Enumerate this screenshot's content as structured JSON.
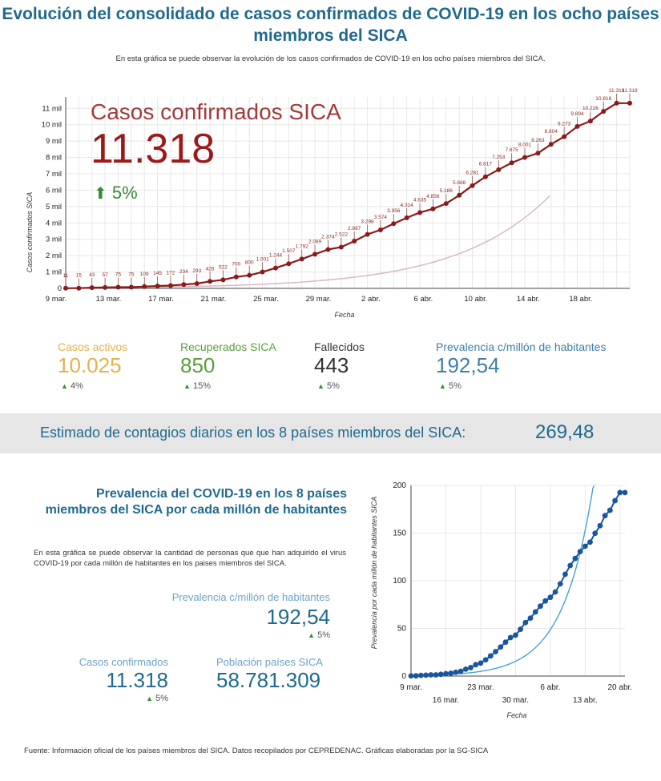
{
  "header": {
    "title": "Evolución del consolidado de casos confirmados de COVID-19 en los ocho países miembros del SICA",
    "subtitle": "En esta gráfica se puede observar la evolución de los casos confirmados de COVID-19 en los ocho países miembros del SICA."
  },
  "kpi": {
    "label": "Casos confirmados SICA",
    "value": "11.318",
    "change": "5%"
  },
  "stats": [
    {
      "label": "Casos activos",
      "value": "10.025",
      "change": "4%",
      "color": "#e8b04a"
    },
    {
      "label": "Recuperados SICA",
      "value": "850",
      "change": "15%",
      "color": "#5a9e3a"
    },
    {
      "label": "Fallecidos",
      "value": "443",
      "change": "5%",
      "color": "#333333"
    },
    {
      "label": "Prevalencia c/millón de habitantes",
      "value": "192,54",
      "change": "5%",
      "color": "#3d7fa6"
    }
  ],
  "daily_estimate": {
    "label": "Estimado de contagios diarios en los 8 países miembros del SICA:",
    "value": "269,48"
  },
  "prevalence_section": {
    "title": "Prevalencia del COVID-19 en los 8 países miembros del SICA por cada millón de habitantes",
    "description": "En esta gráfica se puede observar la cantidad de personas que que han adquirido el virus COVID-19 por cada millón de habitantes en los paises miembros del SICA.",
    "prevalence_label": "Prevalencia c/millón de habitantes",
    "prevalence_value": "192,54",
    "prevalence_change": "5%",
    "cases_label": "Casos confirmados",
    "cases_value": "11.318",
    "cases_change": "5%",
    "population_label": "Población países SICA",
    "population_value": "58.781.309"
  },
  "footer": "Fuente: Información oficial de los países miembros del SICA. Datos recopilados por CEPREDENAC. Gráficas elaboradas por la SG-SICA",
  "colors": {
    "accent": "#1f6a8e",
    "series_main": "#8b1a1a",
    "trend": "#d9b8c0",
    "prev_series": "#1a55a0",
    "prev_trend": "#4a9fd4",
    "up_green": "#3a8a3a"
  },
  "chart_data": [
    {
      "type": "line",
      "xlabel": "Fecha",
      "ylabel": "Casos confirmados SICA",
      "xticks": [
        "9 mar.",
        "13 mar.",
        "17 mar.",
        "21 mar.",
        "25 mar.",
        "29 mar.",
        "2 abr.",
        "6 abr.",
        "10 abr.",
        "14 abr.",
        "18 abr."
      ],
      "yticks": [
        "0",
        "1 mil",
        "2 mil",
        "3 mil",
        "4 mil",
        "5 mil",
        "6 mil",
        "7 mil",
        "8 mil",
        "9 mil",
        "10 mil",
        "11 mil"
      ],
      "ylim": [
        0,
        11700
      ],
      "grid": true,
      "x_start": "2020-03-09",
      "series": [
        {
          "values": [
            11,
            15,
            43,
            57,
            75,
            75,
            109,
            145,
            172,
            234,
            293,
            426,
            522,
            700,
            800,
            1001,
            1244,
            1507,
            1792,
            2089,
            2374,
            2522,
            2887,
            3298,
            3574,
            3956,
            4314,
            4635,
            4856,
            5186,
            5688,
            6281,
            6817,
            7253,
            7675,
            8001,
            8263,
            8804,
            9273,
            9894,
            10226,
            10818,
            11318,
            11318
          ]
        }
      ],
      "data_labels": [
        "11",
        "15",
        "43",
        "57",
        "75",
        "75",
        "109",
        "145",
        "172",
        "234",
        "293",
        "426",
        "522",
        "700",
        "800",
        "1.001",
        "1.244",
        "1.507",
        "1.792",
        "2.089",
        "2.374",
        "2.522",
        "2.887",
        "3.298",
        "3.574",
        "3.956",
        "4.314",
        "4.635",
        "4.856",
        "5.186",
        "5.688",
        "6.281",
        "6.817",
        "7.253",
        "7.675",
        "8.001",
        "8.263",
        "8.804",
        "9.273",
        "9.894",
        "10.226",
        "10.818",
        "11.318",
        "11.318"
      ]
    },
    {
      "type": "line",
      "xlabel": "Fecha",
      "ylabel": "Prevalencia por cada millón de habitantes SICA",
      "xticks_top": [
        "9 mar.",
        "23 mar.",
        "6 abr.",
        "20 abr."
      ],
      "xticks_bottom": [
        "16 mar.",
        "30 mar.",
        "13 abr."
      ],
      "yticks": [
        "0",
        "50",
        "100",
        "150",
        "200"
      ],
      "ylim": [
        0,
        200
      ],
      "x_start": "2020-03-09",
      "series": [
        {
          "values": [
            0.19,
            0.26,
            0.73,
            0.97,
            1.28,
            1.28,
            1.85,
            2.47,
            2.93,
            3.98,
            4.98,
            7.25,
            8.88,
            11.91,
            13.61,
            17.03,
            21.16,
            25.64,
            30.48,
            35.54,
            40.39,
            42.91,
            49.11,
            56.11,
            60.8,
            67.3,
            73.39,
            78.85,
            82.61,
            88.22,
            96.76,
            106.85,
            115.97,
            123.39,
            130.57,
            136.11,
            140.57,
            149.77,
            157.75,
            168.32,
            173.97,
            184.04,
            192.54,
            192.54
          ]
        }
      ]
    }
  ]
}
